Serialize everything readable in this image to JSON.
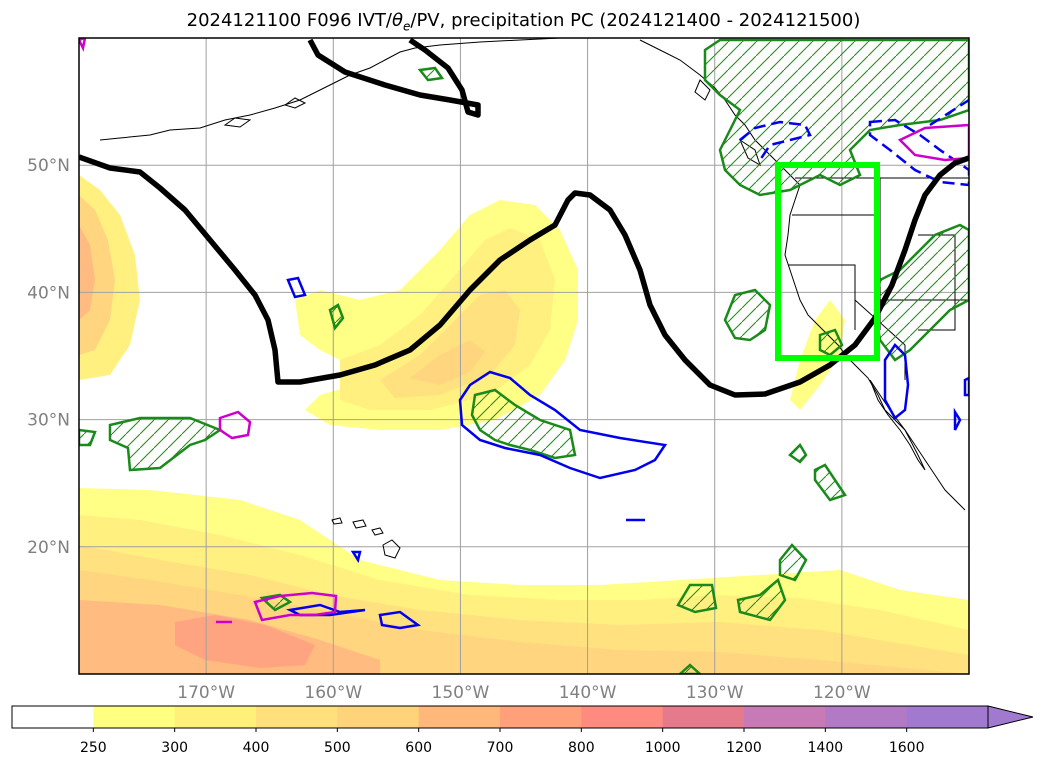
{
  "title": {
    "prefix": "2024121100 F096 IVT/",
    "theta": "θ",
    "theta_sub": "e",
    "suffix": "/PV, precipitation PC (2024121400 - 2024121500)"
  },
  "map": {
    "projection": "equirectangular",
    "lon_range": [
      -180,
      -110
    ],
    "lat_range": [
      10,
      60
    ],
    "grid": true,
    "lat_ticks": [
      {
        "value": 50,
        "label": "50°N"
      },
      {
        "value": 40,
        "label": "40°N"
      },
      {
        "value": 30,
        "label": "30°N"
      },
      {
        "value": 20,
        "label": "20°N"
      }
    ],
    "lon_ticks": [
      {
        "value": -170,
        "label": "170°W"
      },
      {
        "value": -160,
        "label": "160°W"
      },
      {
        "value": -150,
        "label": "150°W"
      },
      {
        "value": -140,
        "label": "140°W"
      },
      {
        "value": -130,
        "label": "130°W"
      },
      {
        "value": -120,
        "label": "120°W"
      }
    ],
    "highlight_box": {
      "lon": [
        -125,
        -117
      ],
      "lat": [
        35,
        50
      ],
      "color": "#00ff00"
    }
  },
  "colorbar": {
    "levels": [
      "250",
      "300",
      "400",
      "500",
      "600",
      "700",
      "800",
      "1000",
      "1200",
      "1400",
      "1600"
    ],
    "colors": [
      "#ffffff",
      "#ffff80",
      "#fff07a",
      "#ffe07a",
      "#ffd37a",
      "#ffb87a",
      "#ffa07a",
      "#ff8a80",
      "#e57a8c",
      "#c77ab5",
      "#b27ac4",
      "#a17ad0"
    ],
    "extend": "max"
  },
  "colors": {
    "pv_contour": "#000000",
    "precip_green": "#1a8a1a",
    "theta_blue": "#0000ee",
    "magenta": "#cc00cc",
    "coast": "#000000"
  }
}
